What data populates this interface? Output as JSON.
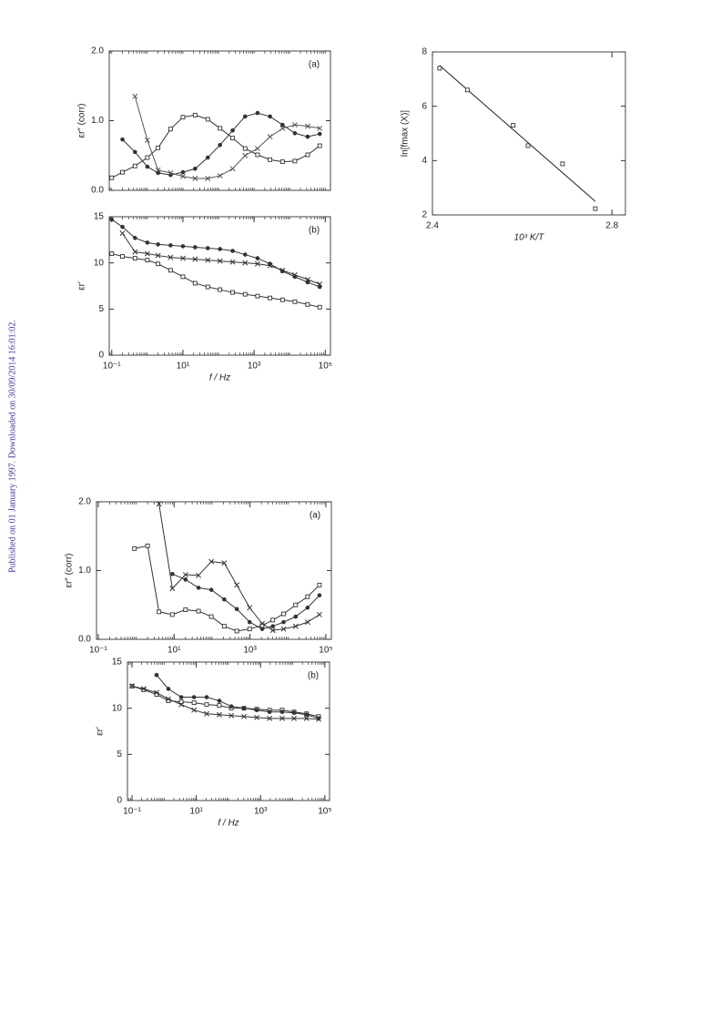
{
  "side_note": "Published on 01 January 1997. Downloaded on 30/09/2014 16:01:02.",
  "chart_data": [
    {
      "type": "line",
      "annotation": "(a)",
      "ylabel": "εr″ (corr)",
      "log_x": true,
      "xlim": [
        0.085,
        140000
      ],
      "ylim": [
        0,
        2
      ],
      "yticks": [
        {
          "value": 0,
          "label": "0.0"
        },
        {
          "value": 1,
          "label": "1.0"
        },
        {
          "value": 2,
          "label": "2.0"
        }
      ],
      "x": [
        0.1,
        0.2,
        0.45,
        1,
        2,
        4.5,
        10,
        22,
        50,
        110,
        250,
        560,
        1250,
        2800,
        6300,
        14000,
        32000,
        70000
      ],
      "series": [
        {
          "marker": "square",
          "color": "#333333",
          "values": [
            0.18,
            0.26,
            0.35,
            0.47,
            0.61,
            0.88,
            1.05,
            1.08,
            1.02,
            0.89,
            0.75,
            0.6,
            0.51,
            0.44,
            0.41,
            0.42,
            0.51,
            0.64
          ]
        },
        {
          "marker": "circle",
          "color": "#333333",
          "values": [
            null,
            0.73,
            0.55,
            0.34,
            0.25,
            0.22,
            0.26,
            0.31,
            0.47,
            0.65,
            0.86,
            1.06,
            1.11,
            1.06,
            0.94,
            0.82,
            0.77,
            0.81
          ]
        },
        {
          "marker": "cross",
          "color": "#555555",
          "values": [
            null,
            null,
            1.35,
            0.72,
            0.29,
            0.25,
            0.2,
            0.17,
            0.17,
            0.21,
            0.31,
            0.5,
            0.6,
            0.77,
            0.89,
            0.94,
            0.92,
            0.89
          ]
        }
      ]
    },
    {
      "type": "line",
      "annotation": "(b)",
      "ylabel": "εr′",
      "xlabel": "f / Hz",
      "log_x": true,
      "xlim": [
        0.085,
        140000
      ],
      "ylim": [
        0,
        15
      ],
      "yticks": [
        0,
        5,
        10,
        15
      ],
      "xticks": [
        {
          "value": 0.1,
          "label": "10⁻¹"
        },
        {
          "value": 10,
          "label": "10¹"
        },
        {
          "value": 1000,
          "label": "10³"
        },
        {
          "value": 100000,
          "label": "10⁵"
        }
      ],
      "x": [
        0.1,
        0.2,
        0.45,
        1,
        2,
        4.5,
        10,
        22,
        50,
        110,
        250,
        560,
        1250,
        2800,
        6300,
        14000,
        32000,
        70000
      ],
      "series": [
        {
          "marker": "circle",
          "color": "#333333",
          "values": [
            14.7,
            13.9,
            12.7,
            12.2,
            12.0,
            11.9,
            11.8,
            11.7,
            11.6,
            11.5,
            11.3,
            10.9,
            10.5,
            9.9,
            9.1,
            8.5,
            7.9,
            7.4
          ]
        },
        {
          "marker": "cross",
          "color": "#333333",
          "values": [
            null,
            13.2,
            11.2,
            11.0,
            10.8,
            10.6,
            10.5,
            10.4,
            10.3,
            10.2,
            10.1,
            10.0,
            9.9,
            9.7,
            9.2,
            8.7,
            8.2,
            7.7
          ]
        },
        {
          "marker": "square",
          "color": "#333333",
          "values": [
            11.0,
            10.7,
            10.5,
            10.3,
            9.9,
            9.2,
            8.5,
            7.8,
            7.4,
            7.1,
            6.8,
            6.6,
            6.4,
            6.2,
            6.0,
            5.8,
            5.5,
            5.2
          ]
        }
      ]
    },
    {
      "type": "scatter",
      "ylabel": "ln[fmax (X)]",
      "xlabel": "10³ K/T",
      "xlim": [
        2.4,
        2.83
      ],
      "ylim": [
        2,
        8
      ],
      "xticks": [
        2.4,
        2.8
      ],
      "yticks": [
        2,
        4,
        6,
        8
      ],
      "x": [
        2.416,
        2.478,
        2.58,
        2.613,
        2.69,
        2.763
      ],
      "values": [
        7.4,
        6.6,
        5.3,
        4.55,
        3.88,
        2.23
      ],
      "marker": "square",
      "color": "#333333",
      "line": {
        "x": [
          2.416,
          2.763
        ],
        "values": [
          7.5,
          2.5
        ]
      }
    },
    {
      "type": "line",
      "annotation": "(a)",
      "ylabel": "εr″ (corr)",
      "log_x": true,
      "xlim": [
        0.09,
        140000
      ],
      "ylim": [
        0,
        2
      ],
      "yticks": [
        {
          "value": 0,
          "label": "0.0"
        },
        {
          "value": 1,
          "label": "1.0"
        },
        {
          "value": 2,
          "label": "2.0"
        }
      ],
      "xticks": [
        {
          "value": 0.1,
          "label": "10⁻¹"
        },
        {
          "value": 10,
          "label": "10¹"
        },
        {
          "value": 1000,
          "label": "10³"
        },
        {
          "value": 100000,
          "label": "10⁵"
        }
      ],
      "x": [
        0.9,
        2,
        4,
        9,
        20,
        44,
        96,
        210,
        450,
        980,
        2100,
        4000,
        7700,
        16000,
        33000,
        68000
      ],
      "series": [
        {
          "marker": "square",
          "color": "#333333",
          "values": [
            1.32,
            1.36,
            0.4,
            0.36,
            0.43,
            0.41,
            0.33,
            0.19,
            0.12,
            0.15,
            0.2,
            0.28,
            0.37,
            0.5,
            0.62,
            0.79
          ]
        },
        {
          "marker": "circle",
          "color": "#333333",
          "values": [
            null,
            null,
            null,
            0.95,
            0.87,
            0.75,
            0.72,
            0.58,
            0.44,
            0.25,
            0.15,
            0.19,
            0.25,
            0.33,
            0.46,
            0.64
          ]
        },
        {
          "marker": "cross",
          "color": "#333333",
          "values": [
            null,
            null,
            1.97,
            0.74,
            0.94,
            0.93,
            1.13,
            1.11,
            0.79,
            0.46,
            0.23,
            0.13,
            0.15,
            0.19,
            0.25,
            0.36
          ]
        }
      ]
    },
    {
      "type": "line",
      "annotation": "(b)",
      "ylabel": "εr′",
      "xlabel": "f / Hz",
      "log_x": true,
      "xlim": [
        0.072,
        140000
      ],
      "ylim": [
        0,
        15
      ],
      "yticks": [
        0,
        5,
        10,
        15
      ],
      "xticks": [
        {
          "value": 0.1,
          "label": "10⁻¹"
        },
        {
          "value": 10,
          "label": "10¹"
        },
        {
          "value": 1000,
          "label": "10³"
        },
        {
          "value": 100000,
          "label": "10⁵"
        }
      ],
      "x": [
        0.1,
        0.23,
        0.58,
        1.35,
        3.4,
        8.5,
        21,
        52,
        123,
        305,
        760,
        1900,
        4700,
        11000,
        27000,
        64000
      ],
      "series": [
        {
          "marker": "square",
          "color": "#333333",
          "values": [
            12.4,
            12.0,
            11.5,
            10.8,
            10.7,
            10.6,
            10.4,
            10.3,
            10.0,
            10.0,
            9.9,
            9.8,
            9.8,
            9.6,
            9.4,
            9.1
          ]
        },
        {
          "marker": "circle",
          "color": "#333333",
          "values": [
            null,
            null,
            13.6,
            12.1,
            11.2,
            11.2,
            11.2,
            10.8,
            10.2,
            10.0,
            9.8,
            9.6,
            9.6,
            9.5,
            9.3,
            8.9
          ]
        },
        {
          "marker": "cross",
          "color": "#333333",
          "values": [
            12.4,
            12.1,
            11.7,
            11.0,
            10.4,
            9.8,
            9.4,
            9.3,
            9.2,
            9.1,
            9.0,
            8.9,
            8.9,
            8.9,
            8.9,
            8.8
          ]
        }
      ]
    }
  ]
}
